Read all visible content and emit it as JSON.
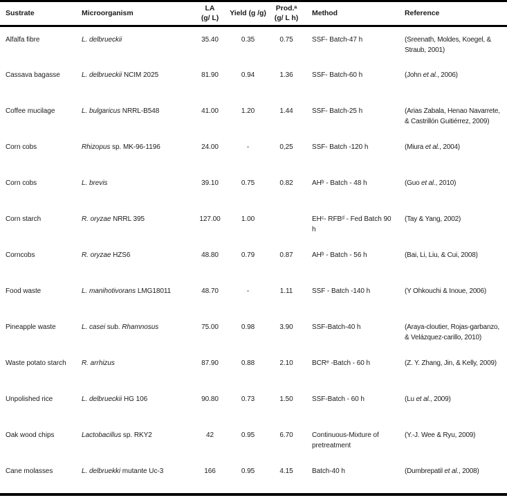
{
  "table": {
    "headers": {
      "substrate": "Sustrate",
      "microorganism": "Microorganism",
      "la1": "LA",
      "la2": "(g/ L)",
      "yield": "Yield (g /g)",
      "prod1": "Prod.ᵃ",
      "prod2": "(g/ L h)",
      "method": "Method",
      "reference": "Reference"
    },
    "rows": [
      {
        "substrate": "Alfalfa fibre",
        "m1": "L. delbrueckii",
        "m2": "",
        "m3": "",
        "la": "35.40",
        "yield": "0.35",
        "prod": "0.75",
        "method": "SSF- Batch-47 h",
        "ref1": "(Sreenath, Moldes, Koegel, & Straub, 2001)",
        "ref2": "",
        "ref3": ""
      },
      {
        "substrate": "Cassava bagasse",
        "m1": "L. delbrueckii",
        "m2": " NCIM 2025",
        "m3": "",
        "la": "81.90",
        "yield": "0.94",
        "prod": "1.36",
        "method": "SSF- Batch-60 h",
        "ref1": "(John ",
        "ref2": "et al.",
        "ref3": ", 2006)"
      },
      {
        "substrate": "Coffee mucilage",
        "m1": "L. bulgaricus",
        "m2": " NRRL-B548",
        "m3": "",
        "la": "41.00",
        "yield": "1.20",
        "prod": "1.44",
        "method": "SSF- Batch-25 h",
        "ref1": "(Arias Zabala, Henao Navarrete, & Castrillón Guitiérrez, 2009)",
        "ref2": "",
        "ref3": ""
      },
      {
        "substrate": "Corn cobs",
        "m1": "Rhizopus",
        "m2": " sp. MK-96-1196",
        "m3": "",
        "la": "24.00",
        "yield": "-",
        "prod": "0,25",
        "method": "SSF- Batch -120 h",
        "ref1": "(Miura ",
        "ref2": "et al.",
        "ref3": ", 2004)"
      },
      {
        "substrate": "Corn cobs",
        "m1": "L. brevis",
        "m2": "",
        "m3": "",
        "la": "39.10",
        "yield": "0.75",
        "prod": "0.82",
        "method": "AHᵇ - Batch - 48 h",
        "ref1": "(Guo ",
        "ref2": "et al.",
        "ref3": ", 2010)"
      },
      {
        "substrate": "Corn starch",
        "m1": "R. oryzae",
        "m2": " NRRL 395",
        "m3": "",
        "la": "127.00",
        "yield": "1.00",
        "prod": "",
        "method": "EHᶜ- RFBᵈ - Fed Batch 90 h",
        "ref1": "(Tay & Yang, 2002)",
        "ref2": "",
        "ref3": ""
      },
      {
        "substrate": "Corncobs",
        "m1": "R. oryzae",
        "m2": " HZS6",
        "m3": "",
        "la": "48.80",
        "yield": "0.79",
        "prod": "0.87",
        "method": "AHᵇ - Batch - 56 h",
        "ref1": "(Bai, Li, Liu, & Cui, 2008)",
        "ref2": "",
        "ref3": ""
      },
      {
        "substrate": "Food waste",
        "m1": "L. manihotivorans",
        "m2": " LMG18011",
        "m3": "",
        "la": "48.70",
        "yield": "-",
        "prod": "1.11",
        "method": "SSF - Batch -140 h",
        "ref1": "(Y Ohkouchi & Inoue, 2006)",
        "ref2": "",
        "ref3": ""
      },
      {
        "substrate": "Pineapple waste",
        "m1": "L. casei",
        "m2": " sub. ",
        "m3": "Rhamnosus",
        "la": "75.00",
        "yield": "0.98",
        "prod": "3.90",
        "method": "SSF-Batch-40 h",
        "ref1": "(Araya-cloutier, Rojas-garbanzo, & Velázquez-carillo, 2010)",
        "ref2": "",
        "ref3": ""
      },
      {
        "substrate": "Waste potato starch",
        "m1": "R. arrhizus",
        "m2": "",
        "m3": "",
        "la": "87.90",
        "yield": "0.88",
        "prod": "2.10",
        "method": "BCRᵉ -Batch - 60 h",
        "ref1": "(Z. Y. Zhang, Jin, & Kelly, 2009)",
        "ref2": "",
        "ref3": ""
      },
      {
        "substrate": "Unpolished rice",
        "m1": "L. delbrueckii",
        "m2": " HG 106",
        "m3": "",
        "la": "90.80",
        "yield": "0.73",
        "prod": "1.50",
        "method": "SSF-Batch - 60 h",
        "ref1": "(Lu ",
        "ref2": "et al.",
        "ref3": ", 2009)"
      },
      {
        "substrate": "Oak wood chips",
        "m1": "Lactobacillus",
        "m2": " sp. RKY2",
        "m3": "",
        "la": "42",
        "yield": "0.95",
        "prod": "6.70",
        "method": "Continuous-Mixture of pretreatment",
        "ref1": "(Y.-J. Wee & Ryu, 2009)",
        "ref2": "",
        "ref3": ""
      },
      {
        "substrate": "Cane molasses",
        "m1": "L. delbruekki",
        "m2": " mutante Uc-3",
        "m3": "",
        "la": "166",
        "yield": "0.95",
        "prod": "4.15",
        "method": "Batch-40 h",
        "ref1": "(Dumbrepatil ",
        "ref2": "et al.",
        "ref3": ", 2008)"
      }
    ]
  }
}
